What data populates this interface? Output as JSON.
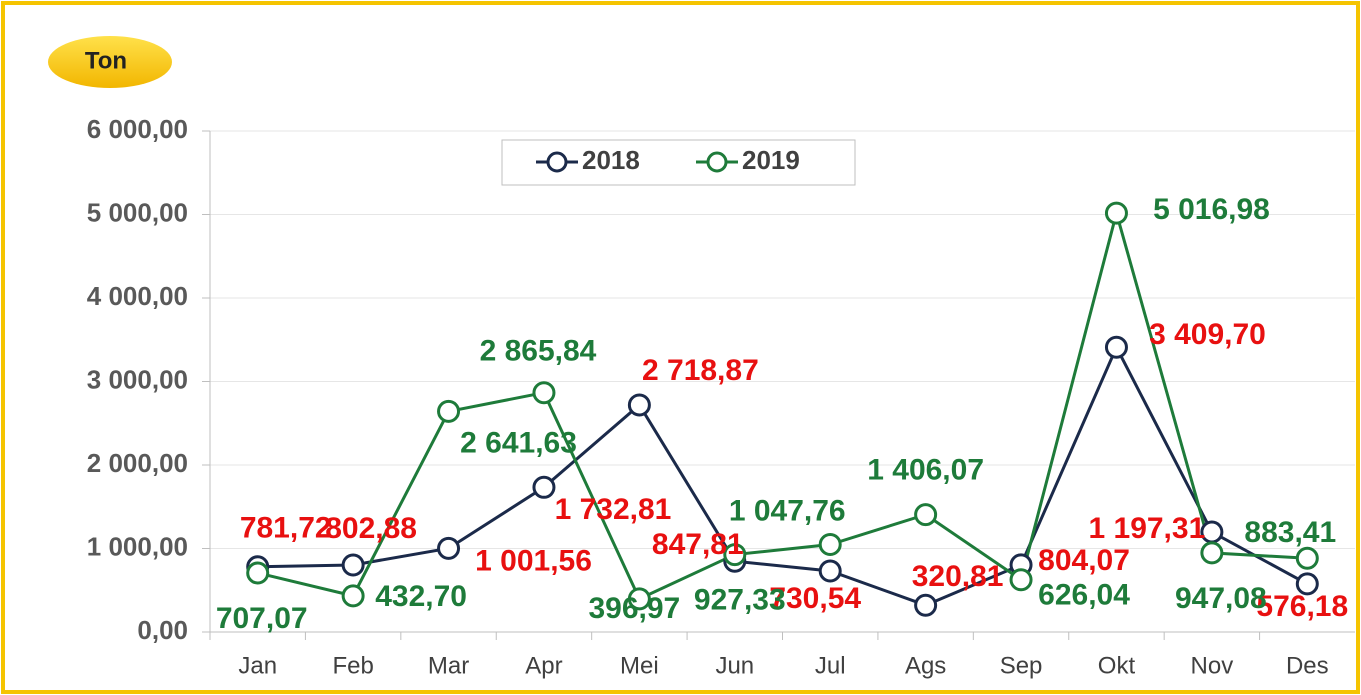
{
  "chart_data": {
    "type": "line",
    "y_label": "Ton",
    "categories": [
      "Jan",
      "Feb",
      "Mar",
      "Apr",
      "Mei",
      "Jun",
      "Jul",
      "Ags",
      "Sep",
      "Okt",
      "Nov",
      "Des"
    ],
    "series": [
      {
        "name": "2018",
        "color": "#1b2a4a",
        "label_color": "#e81010",
        "values": [
          781.72,
          802.88,
          1001.56,
          1732.81,
          2718.87,
          847.81,
          730.54,
          320.81,
          804.07,
          3409.7,
          1197.31,
          576.18
        ],
        "value_labels": [
          "781,72",
          "802,88",
          "1 001,56",
          "1 732,81",
          "2 718,87",
          "847,81",
          "730,54",
          "320,81",
          "804,07",
          "3 409,70",
          "1 197,31",
          "576,18"
        ]
      },
      {
        "name": "2019",
        "color": "#1e7b3a",
        "label_color": "#1e7b3a",
        "values": [
          707.07,
          432.7,
          2641.63,
          2865.84,
          396.97,
          927.33,
          1047.76,
          1406.07,
          626.04,
          5016.98,
          947.08,
          883.41
        ],
        "value_labels": [
          "707,07",
          "432,70",
          "2 641,63",
          "2 865,84",
          "396,97",
          "927,33",
          "1 047,76",
          "1 406,07",
          "626,04",
          "5 016,98",
          "947,08",
          "883,41"
        ]
      }
    ],
    "ylim": [
      0,
      6000
    ],
    "yticks": [
      {
        "value": 0,
        "label": "0,00"
      },
      {
        "value": 1000,
        "label": "1 000,00"
      },
      {
        "value": 2000,
        "label": "2 000,00"
      },
      {
        "value": 3000,
        "label": "3 000,00"
      },
      {
        "value": 4000,
        "label": "4 000,00"
      },
      {
        "value": 5000,
        "label": "5 000,00"
      },
      {
        "value": 6000,
        "label": "6 000,00"
      }
    ],
    "grid": true,
    "legend": "top"
  }
}
